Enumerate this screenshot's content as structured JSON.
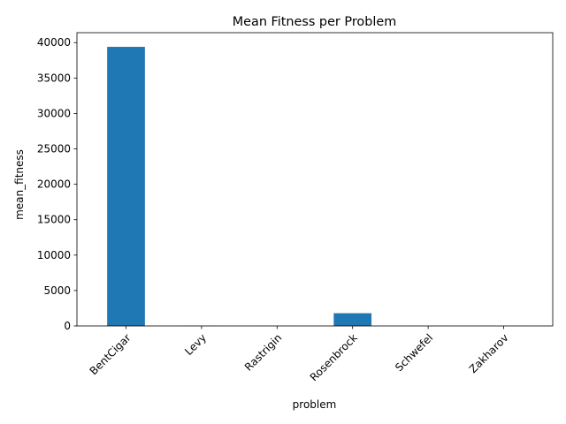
{
  "chart_data": {
    "type": "bar",
    "title": "Mean Fitness per Problem",
    "xlabel": "problem",
    "ylabel": "mean_fitness",
    "categories": [
      "BentCigar",
      "Levy",
      "Rastrigin",
      "Rosenbrock",
      "Schwefel",
      "Zakharov"
    ],
    "values": [
      39400,
      20,
      15,
      1800,
      10,
      5
    ],
    "ylim": [
      0,
      41400
    ],
    "yticks": [
      0,
      5000,
      10000,
      15000,
      20000,
      25000,
      30000,
      35000,
      40000
    ],
    "grid": false,
    "bar_color": "#1f77b4"
  }
}
